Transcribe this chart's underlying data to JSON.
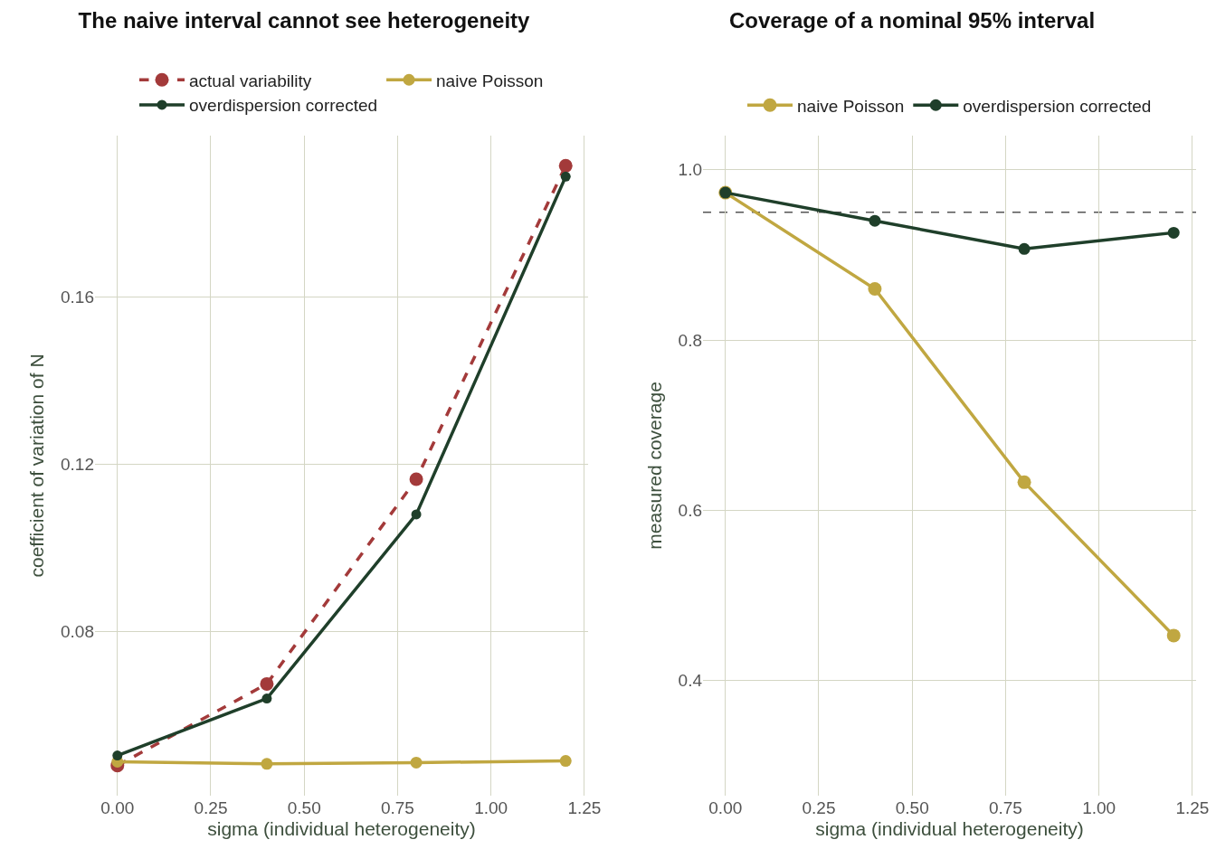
{
  "chart_data": [
    {
      "type": "line",
      "title": "The naive interval cannot see heterogeneity",
      "xlabel": "sigma (individual heterogeneity)",
      "ylabel": "coefficient of variation of N",
      "x": [
        0,
        0.4,
        0.8,
        1.2
      ],
      "xlim": [
        -0.06,
        1.26
      ],
      "xticks": [
        {
          "value": 0,
          "label": "0.00"
        },
        0.25,
        {
          "value": 0.5,
          "label": "0.50"
        },
        0.75,
        {
          "value": 1,
          "label": "1.00"
        },
        1.25
      ],
      "ylim": [
        0.0408,
        0.1985
      ],
      "yticks": [
        0.08,
        0.12,
        0.16
      ],
      "grid": true,
      "legend": "top",
      "marker": "circle",
      "series": [
        {
          "name": "actual variability",
          "color": "#a33a3a",
          "line_style": "dashed",
          "values": [
            0.048,
            0.0675,
            0.1164,
            0.1913
          ]
        },
        {
          "name": "naive Poisson",
          "color": "#c0a741",
          "line_style": "solid",
          "values": [
            0.0489,
            0.0484,
            0.0487,
            0.0491
          ]
        },
        {
          "name": "overdispersion corrected",
          "color": "#1f3f2a",
          "line_style": "solid",
          "values": [
            0.0504,
            0.064,
            0.108,
            0.1887
          ]
        }
      ]
    },
    {
      "type": "line",
      "title": "Coverage of a nominal 95% interval",
      "xlabel": "sigma (individual heterogeneity)",
      "ylabel": "measured coverage",
      "x": [
        0,
        0.4,
        0.8,
        1.2
      ],
      "xlim": [
        -0.06,
        1.26
      ],
      "xticks": [
        {
          "value": 0,
          "label": "0.00"
        },
        0.25,
        {
          "value": 0.5,
          "label": "0.50"
        },
        0.75,
        {
          "value": 1,
          "label": "1.00"
        },
        1.25
      ],
      "ylim": [
        0.265,
        1.04
      ],
      "yticks": [
        0.4,
        0.6,
        0.8,
        {
          "value": 1,
          "label": "1.0"
        }
      ],
      "grid": true,
      "legend": "top",
      "marker": "circle",
      "ref_lines": [
        {
          "axis": "y",
          "value": 0.95,
          "label": null,
          "color": "#555555",
          "line_style": "dashed"
        }
      ],
      "series": [
        {
          "name": "naive Poisson",
          "color": "#c0a741",
          "line_style": "solid",
          "values": [
            0.973,
            0.86,
            0.633,
            0.453
          ]
        },
        {
          "name": "overdispersion corrected",
          "color": "#1f3f2a",
          "line_style": "solid",
          "values": [
            0.973,
            0.94,
            0.907,
            0.926
          ]
        }
      ]
    }
  ]
}
